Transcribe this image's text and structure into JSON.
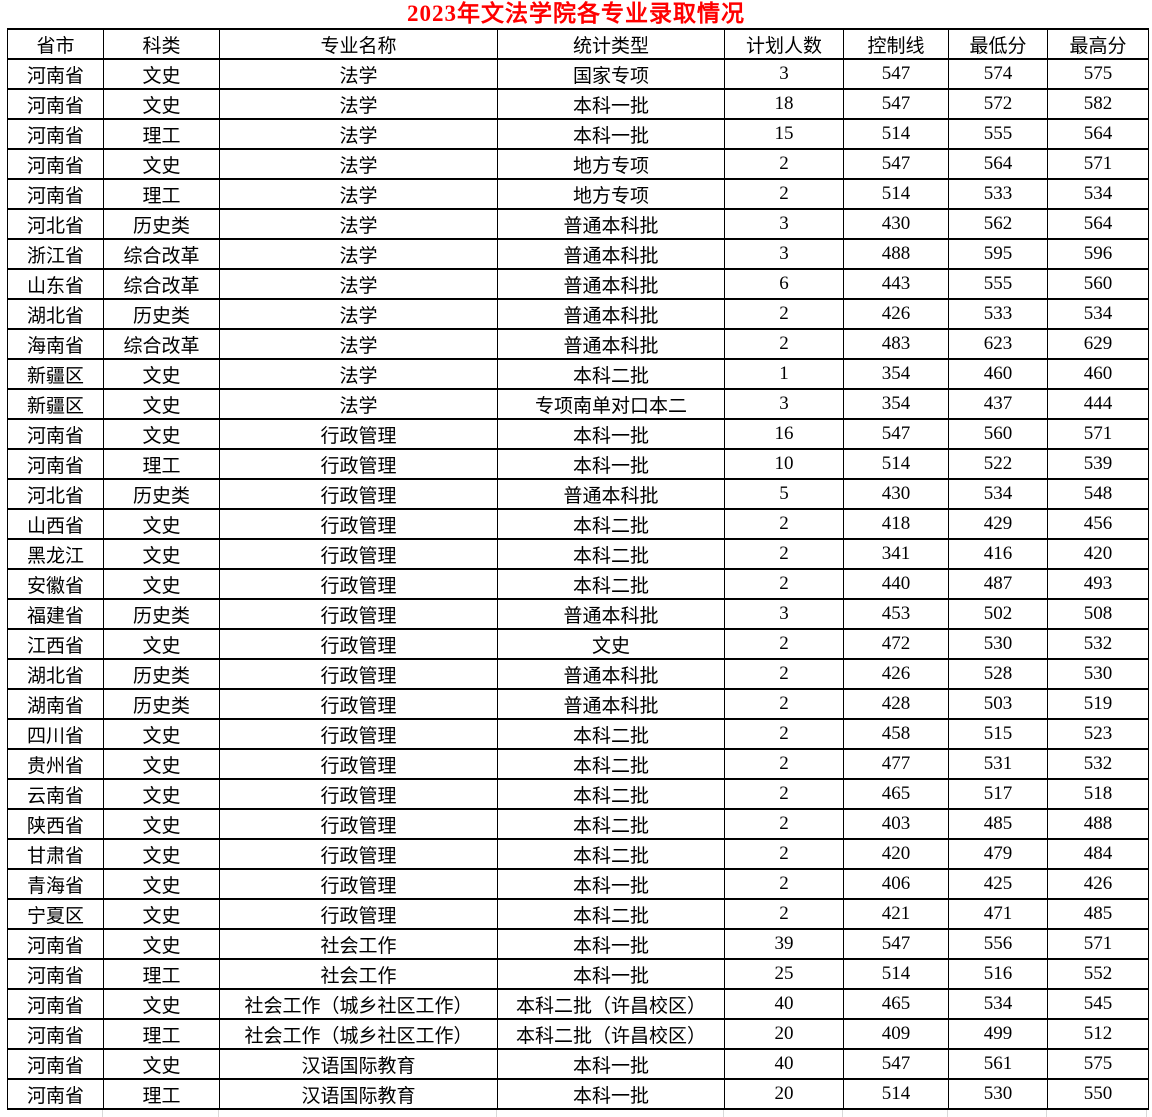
{
  "title": {
    "text": "2023年文法学院各专业录取情况"
  },
  "colors": {
    "title": "#ff0000",
    "border": "#000000",
    "gridline": "#d9d9d9",
    "background": "#ffffff",
    "text": "#000000"
  },
  "table": {
    "headers": [
      "省市",
      "科类",
      "专业名称",
      "统计类型",
      "计划人数",
      "控制线",
      "最低分",
      "最高分"
    ],
    "rows": [
      [
        "河南省",
        "文史",
        "法学",
        "国家专项",
        "3",
        "547",
        "574",
        "575"
      ],
      [
        "河南省",
        "文史",
        "法学",
        "本科一批",
        "18",
        "547",
        "572",
        "582"
      ],
      [
        "河南省",
        "理工",
        "法学",
        "本科一批",
        "15",
        "514",
        "555",
        "564"
      ],
      [
        "河南省",
        "文史",
        "法学",
        "地方专项",
        "2",
        "547",
        "564",
        "571"
      ],
      [
        "河南省",
        "理工",
        "法学",
        "地方专项",
        "2",
        "514",
        "533",
        "534"
      ],
      [
        "河北省",
        "历史类",
        "法学",
        "普通本科批",
        "3",
        "430",
        "562",
        "564"
      ],
      [
        "浙江省",
        "综合改革",
        "法学",
        "普通本科批",
        "3",
        "488",
        "595",
        "596"
      ],
      [
        "山东省",
        "综合改革",
        "法学",
        "普通本科批",
        "6",
        "443",
        "555",
        "560"
      ],
      [
        "湖北省",
        "历史类",
        "法学",
        "普通本科批",
        "2",
        "426",
        "533",
        "534"
      ],
      [
        "海南省",
        "综合改革",
        "法学",
        "普通本科批",
        "2",
        "483",
        "623",
        "629"
      ],
      [
        "新疆区",
        "文史",
        "法学",
        "本科二批",
        "1",
        "354",
        "460",
        "460"
      ],
      [
        "新疆区",
        "文史",
        "法学",
        "专项南单对口本二",
        "3",
        "354",
        "437",
        "444"
      ],
      [
        "河南省",
        "文史",
        "行政管理",
        "本科一批",
        "16",
        "547",
        "560",
        "571"
      ],
      [
        "河南省",
        "理工",
        "行政管理",
        "本科一批",
        "10",
        "514",
        "522",
        "539"
      ],
      [
        "河北省",
        "历史类",
        "行政管理",
        "普通本科批",
        "5",
        "430",
        "534",
        "548"
      ],
      [
        "山西省",
        "文史",
        "行政管理",
        "本科二批",
        "2",
        "418",
        "429",
        "456"
      ],
      [
        "黑龙江",
        "文史",
        "行政管理",
        "本科二批",
        "2",
        "341",
        "416",
        "420"
      ],
      [
        "安徽省",
        "文史",
        "行政管理",
        "本科二批",
        "2",
        "440",
        "487",
        "493"
      ],
      [
        "福建省",
        "历史类",
        "行政管理",
        "普通本科批",
        "3",
        "453",
        "502",
        "508"
      ],
      [
        "江西省",
        "文史",
        "行政管理",
        "文史",
        "2",
        "472",
        "530",
        "532"
      ],
      [
        "湖北省",
        "历史类",
        "行政管理",
        "普通本科批",
        "2",
        "426",
        "528",
        "530"
      ],
      [
        "湖南省",
        "历史类",
        "行政管理",
        "普通本科批",
        "2",
        "428",
        "503",
        "519"
      ],
      [
        "四川省",
        "文史",
        "行政管理",
        "本科二批",
        "2",
        "458",
        "515",
        "523"
      ],
      [
        "贵州省",
        "文史",
        "行政管理",
        "本科二批",
        "2",
        "477",
        "531",
        "532"
      ],
      [
        "云南省",
        "文史",
        "行政管理",
        "本科二批",
        "2",
        "465",
        "517",
        "518"
      ],
      [
        "陕西省",
        "文史",
        "行政管理",
        "本科二批",
        "2",
        "403",
        "485",
        "488"
      ],
      [
        "甘肃省",
        "文史",
        "行政管理",
        "本科二批",
        "2",
        "420",
        "479",
        "484"
      ],
      [
        "青海省",
        "文史",
        "行政管理",
        "本科一批",
        "2",
        "406",
        "425",
        "426"
      ],
      [
        "宁夏区",
        "文史",
        "行政管理",
        "本科二批",
        "2",
        "421",
        "471",
        "485"
      ],
      [
        "河南省",
        "文史",
        "社会工作",
        "本科一批",
        "39",
        "547",
        "556",
        "571"
      ],
      [
        "河南省",
        "理工",
        "社会工作",
        "本科一批",
        "25",
        "514",
        "516",
        "552"
      ],
      [
        "河南省",
        "文史",
        "社会工作（城乡社区工作）",
        "本科二批（许昌校区）",
        "40",
        "465",
        "534",
        "545"
      ],
      [
        "河南省",
        "理工",
        "社会工作（城乡社区工作）",
        "本科二批（许昌校区）",
        "20",
        "409",
        "499",
        "512"
      ],
      [
        "河南省",
        "文史",
        "汉语国际教育",
        "本科一批",
        "40",
        "547",
        "561",
        "575"
      ],
      [
        "河南省",
        "理工",
        "汉语国际教育",
        "本科一批",
        "20",
        "514",
        "530",
        "550"
      ]
    ]
  }
}
